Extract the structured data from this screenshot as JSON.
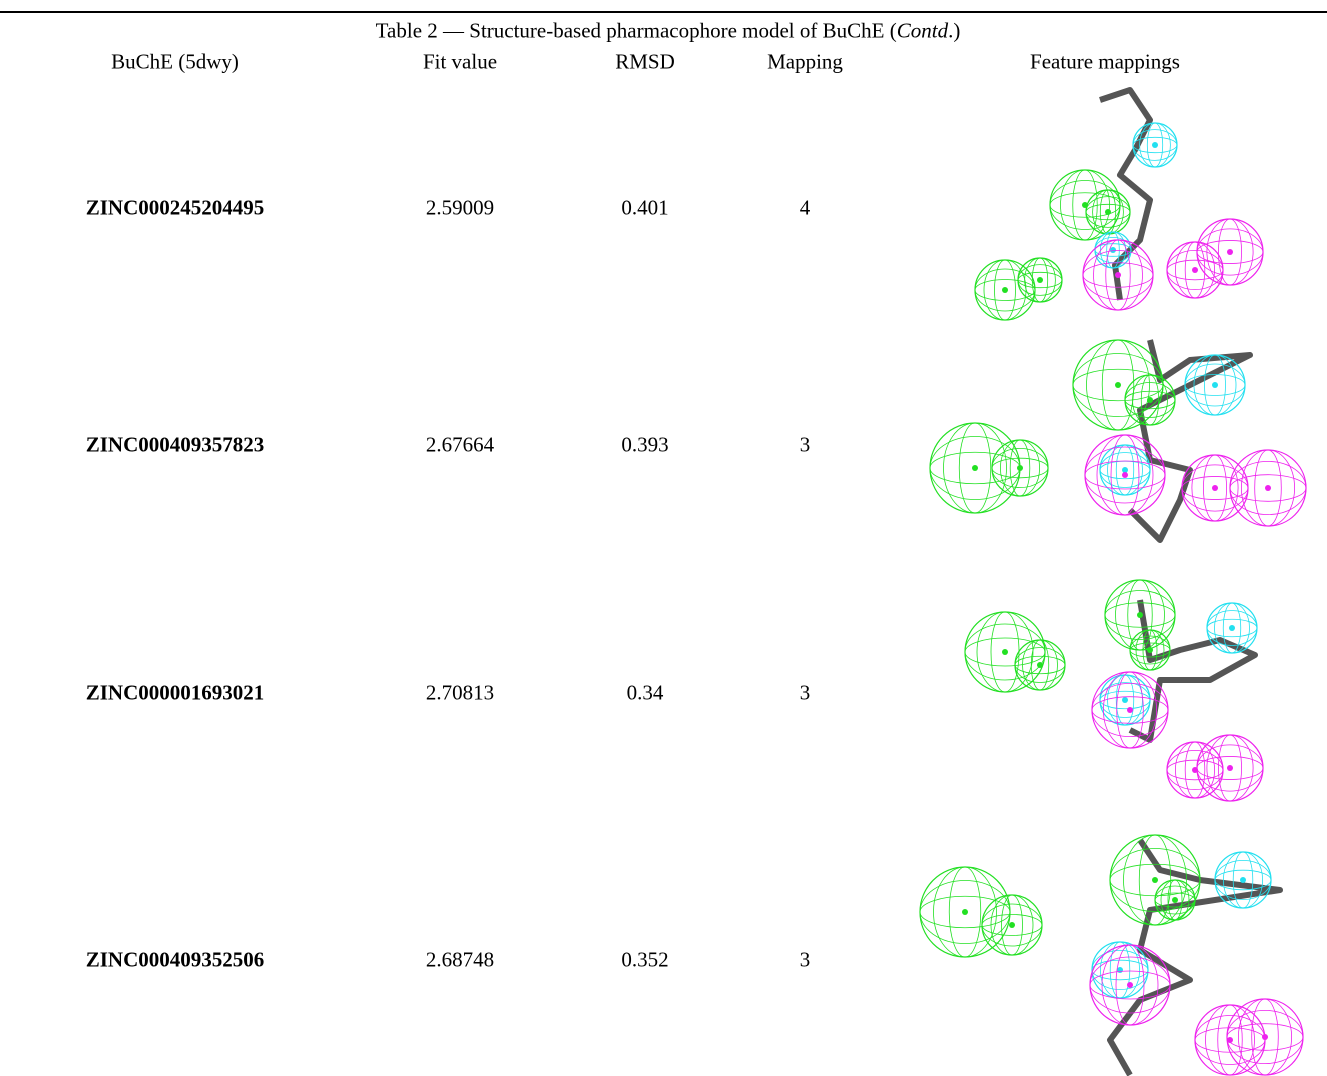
{
  "table": {
    "title": {
      "before": "Table 2 — Structure-based pharmacophore model of BuChE (",
      "italic": "Contd",
      "after": ".)"
    },
    "header": [
      "BuChE (5dwy)",
      "Fit value",
      "RMSD",
      "Mapping",
      "Feature mappings"
    ],
    "rows": [
      [
        "ZINC000245204495",
        "2.59009",
        "0.401",
        "4"
      ],
      [
        "ZINC000409357823",
        "2.67664",
        "0.393",
        "3"
      ],
      [
        "ZINC000001693021",
        "2.70813",
        "0.34",
        "3"
      ],
      [
        "ZINC000409352506",
        "2.68748",
        "0.352",
        "3"
      ]
    ]
  }
}
